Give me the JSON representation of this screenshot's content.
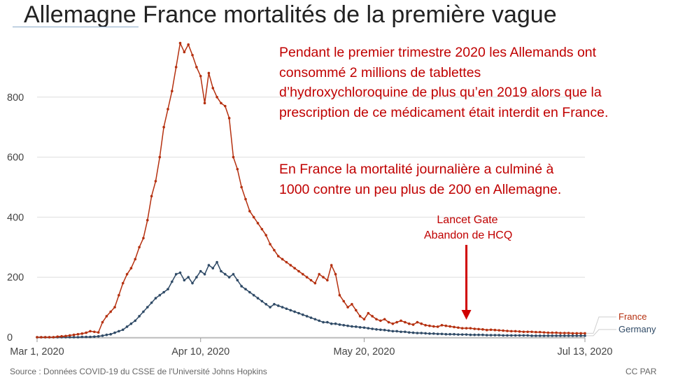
{
  "slide": {
    "title": "Allemagne France mortalités de la première vague",
    "note_lines": [
      "Pendant le premier trimestre 2020 les Allemands ont",
      "consommé 2 millions de tablettes",
      "d’hydroxychloroquine de plus qu’en 2019 alors que la",
      "prescription de ce médicament était interdit en France."
    ],
    "note2_lines": [
      "En France la mortalité journalière a culminé à",
      "1000 contre un peu plus de 200 en Allemagne."
    ],
    "annotation_lines": [
      "Lancet Gate",
      "Abandon de HCQ"
    ],
    "source": "Source : Données COVID-19 du CSSE de l'Université Johns Hopkins",
    "credit": "CC PAR"
  },
  "chart_data": {
    "type": "line",
    "x_ticks": [
      "Mar 1, 2020",
      "Apr 10, 2020",
      "May 20, 2020",
      "Jul 13, 2020"
    ],
    "y_ticks": [
      "0",
      "200",
      "400",
      "600",
      "800"
    ],
    "ylim": [
      0,
      1000
    ],
    "grid": true,
    "x_index_range": [
      0,
      134
    ],
    "x_tick_index": [
      0,
      40,
      80,
      134
    ],
    "annotation_index": 105,
    "series": [
      {
        "name": "France",
        "color": "#b5300f",
        "values": [
          0,
          0,
          0,
          0,
          0,
          2,
          3,
          4,
          6,
          8,
          10,
          12,
          15,
          20,
          18,
          16,
          50,
          70,
          85,
          100,
          140,
          180,
          210,
          230,
          260,
          300,
          330,
          390,
          470,
          520,
          600,
          700,
          760,
          820,
          900,
          980,
          950,
          975,
          940,
          900,
          870,
          780,
          880,
          830,
          800,
          780,
          770,
          730,
          600,
          560,
          500,
          460,
          420,
          400,
          380,
          360,
          340,
          310,
          290,
          270,
          260,
          250,
          240,
          230,
          220,
          210,
          200,
          190,
          180,
          210,
          200,
          190,
          240,
          210,
          140,
          120,
          100,
          110,
          90,
          70,
          60,
          80,
          70,
          60,
          55,
          60,
          50,
          45,
          50,
          55,
          50,
          45,
          42,
          50,
          45,
          40,
          38,
          36,
          35,
          40,
          38,
          36,
          34,
          32,
          30,
          30,
          30,
          28,
          27,
          26,
          24,
          25,
          24,
          23,
          22,
          21,
          20,
          20,
          19,
          18,
          18,
          18,
          17,
          17,
          16,
          15,
          15,
          15,
          14,
          14,
          14,
          13,
          13,
          13,
          13
        ]
      },
      {
        "name": "Germany",
        "color": "#2f4a66",
        "values": [
          0,
          0,
          0,
          0,
          0,
          0,
          0,
          0,
          0,
          0,
          0,
          1,
          1,
          1,
          2,
          3,
          5,
          8,
          10,
          15,
          20,
          25,
          35,
          45,
          55,
          70,
          85,
          100,
          115,
          130,
          140,
          150,
          160,
          185,
          210,
          215,
          190,
          200,
          180,
          200,
          220,
          210,
          240,
          230,
          250,
          220,
          210,
          200,
          210,
          190,
          170,
          160,
          150,
          140,
          130,
          120,
          110,
          100,
          110,
          105,
          100,
          95,
          90,
          85,
          80,
          75,
          70,
          65,
          60,
          55,
          50,
          50,
          45,
          45,
          42,
          40,
          38,
          36,
          35,
          33,
          32,
          30,
          28,
          26,
          25,
          24,
          22,
          20,
          20,
          18,
          18,
          16,
          15,
          14,
          14,
          13,
          12,
          12,
          11,
          11,
          10,
          10,
          10,
          9,
          9,
          9,
          8,
          8,
          8,
          8,
          7,
          7,
          7,
          7,
          6,
          6,
          6,
          6,
          6,
          6,
          6,
          5,
          5,
          5,
          5,
          5,
          5,
          5,
          5,
          5,
          5,
          5,
          5,
          5,
          5
        ]
      }
    ]
  }
}
